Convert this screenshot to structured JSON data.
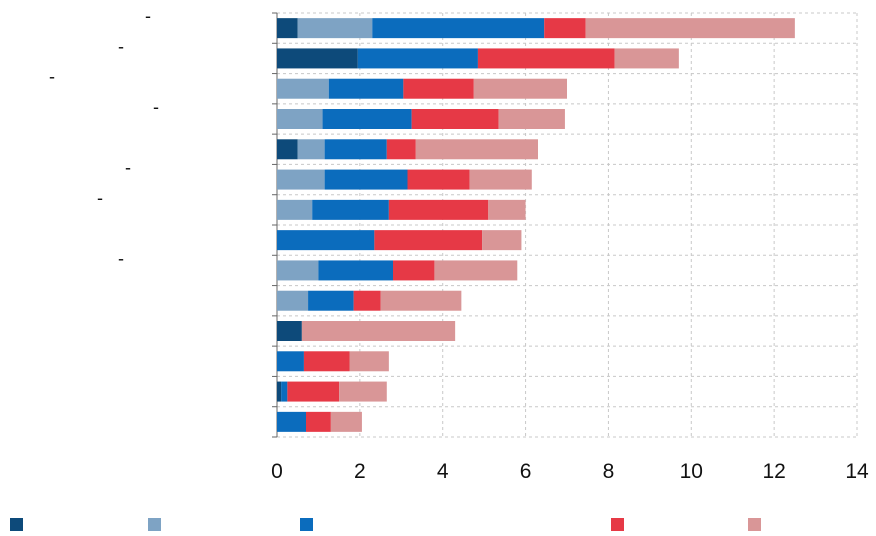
{
  "chart_data": {
    "type": "bar",
    "orientation": "horizontal",
    "stacked": true,
    "categories": [
      "-",
      "-",
      "-",
      "-",
      "",
      "-",
      "-",
      "",
      "-",
      "",
      "",
      "",
      "",
      ""
    ],
    "series": [
      {
        "color": "#0d4a7a",
        "values": [
          0.5,
          1.95,
          0,
          0,
          0.5,
          0,
          0,
          0,
          0,
          0,
          0.6,
          0,
          0.1,
          0
        ]
      },
      {
        "color": "#7ea3c4",
        "values": [
          1.8,
          0,
          1.25,
          1.1,
          0.65,
          1.15,
          0.85,
          0,
          1.0,
          0.75,
          0,
          0,
          0,
          0
        ]
      },
      {
        "color": "#0b6cbd",
        "values": [
          4.15,
          2.9,
          1.8,
          2.15,
          1.5,
          2.0,
          1.85,
          2.35,
          1.8,
          1.1,
          0,
          0.65,
          0.15,
          0.7
        ]
      },
      {
        "color": "#e63946",
        "values": [
          1.0,
          3.3,
          1.7,
          2.1,
          0.7,
          1.5,
          2.4,
          2.6,
          1.0,
          0.65,
          0,
          1.1,
          1.25,
          0.6
        ]
      },
      {
        "color": "#d99697",
        "values": [
          5.05,
          1.55,
          2.25,
          1.6,
          2.95,
          1.5,
          0.9,
          0.95,
          2.0,
          1.95,
          3.7,
          0.95,
          1.15,
          0.75
        ]
      }
    ],
    "xlim": [
      0,
      14
    ],
    "xticks": [
      "0",
      "2",
      "4",
      "6",
      "8",
      "10",
      "12",
      "14"
    ],
    "grid": true,
    "legend_position": "bottom",
    "title": "",
    "xlabel": "",
    "ylabel": ""
  }
}
